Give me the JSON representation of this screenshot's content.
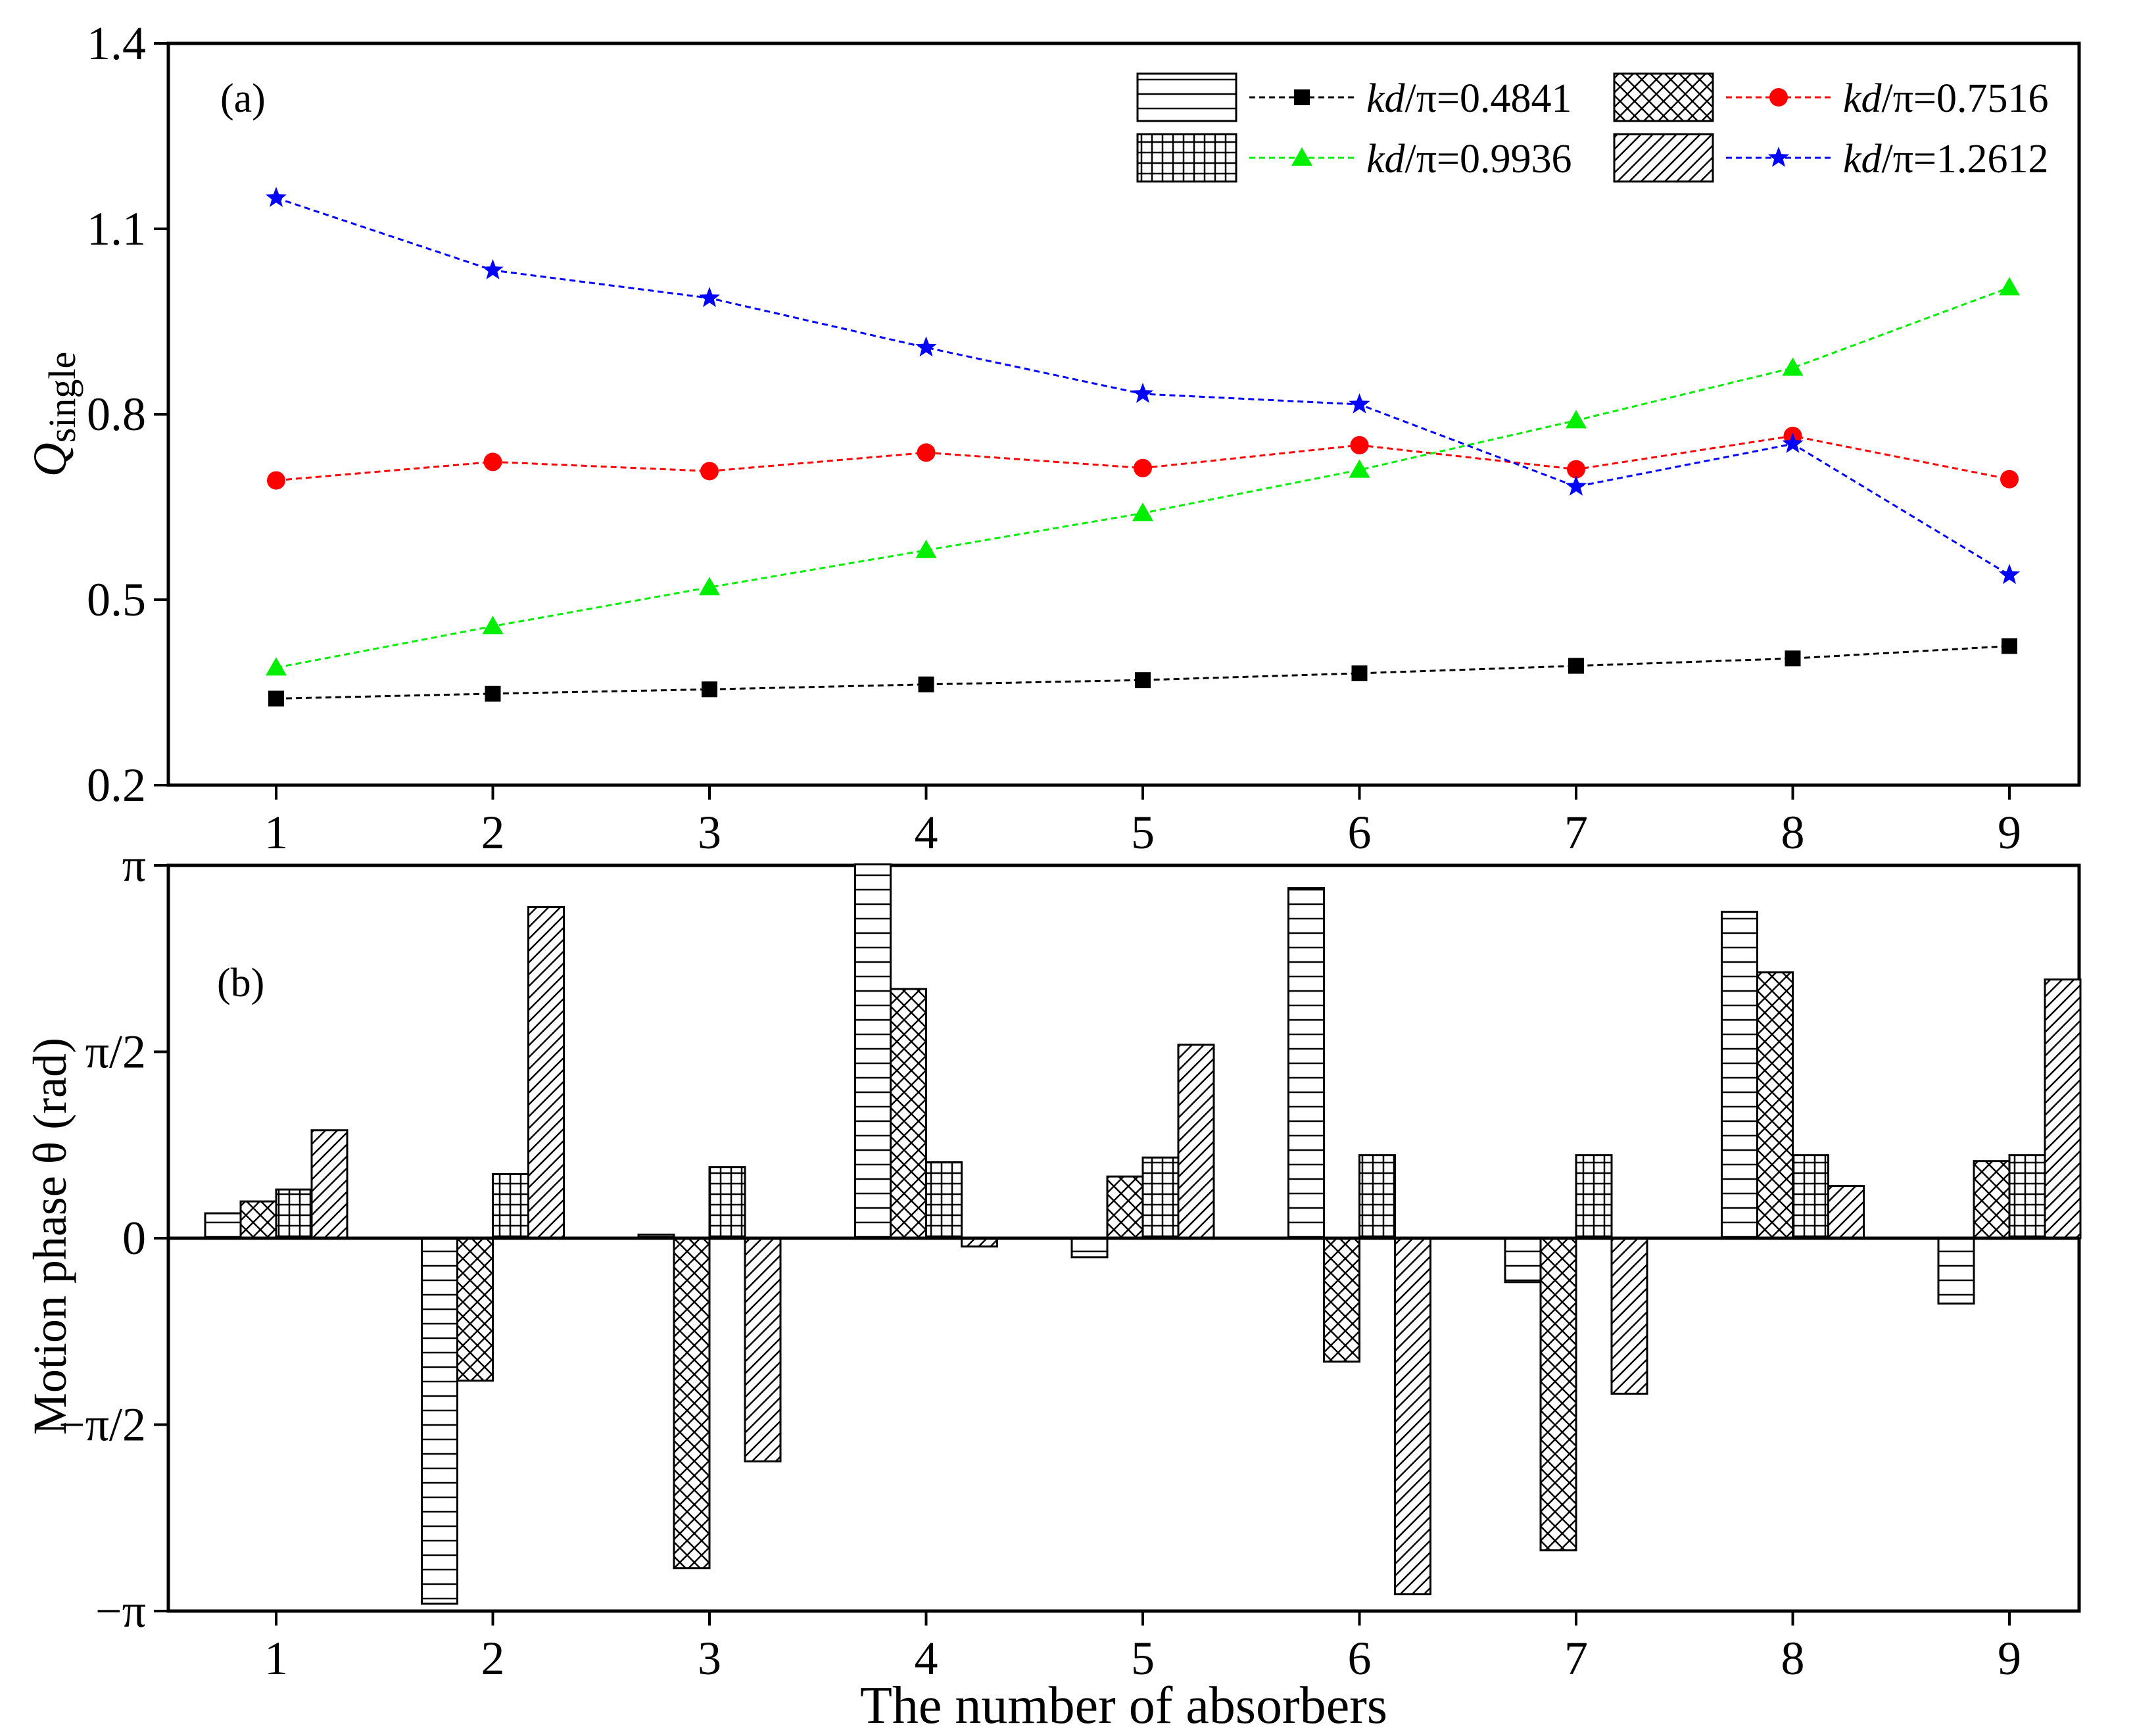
{
  "figure": {
    "x_title": "The number of absorbers"
  },
  "legend_items": [
    {
      "text_italic": "kd",
      "text_rest": "/π=0.4841",
      "pattern": "horizontal",
      "marker": "square",
      "color": "#000000"
    },
    {
      "text_italic": "kd",
      "text_rest": "/π=0.7516",
      "pattern": "crosshatch",
      "marker": "circle",
      "color": "#ff0000"
    },
    {
      "text_italic": "kd",
      "text_rest": "/π=0.9936",
      "pattern": "grid",
      "marker": "triangle",
      "color": "#00ee00"
    },
    {
      "text_italic": "kd",
      "text_rest": "/π=1.2612",
      "pattern": "diagonal",
      "marker": "star",
      "color": "#0000ff"
    }
  ],
  "chart_data": [
    {
      "panel_label": "(a)",
      "type": "line",
      "ylabel_main": "Q",
      "ylabel_sub": "single",
      "xlabel": "",
      "x": [
        1,
        2,
        3,
        4,
        5,
        6,
        7,
        8,
        9
      ],
      "xlim": [
        0.5,
        9.5
      ],
      "ylim": [
        0.2,
        1.4
      ],
      "yticks": [
        0.2,
        0.5,
        0.8,
        1.1,
        1.4
      ],
      "ytick_labels": [
        "0.2",
        "0.5",
        "0.8",
        "1.1",
        "1.4"
      ],
      "series": [
        {
          "name": "kd/π=0.4841",
          "color": "#000000",
          "marker": "square",
          "values": [
            0.34,
            0.348,
            0.355,
            0.363,
            0.37,
            0.381,
            0.393,
            0.405,
            0.425
          ]
        },
        {
          "name": "kd/π=0.7516",
          "color": "#ff0000",
          "marker": "circle",
          "values": [
            0.693,
            0.723,
            0.708,
            0.738,
            0.713,
            0.75,
            0.711,
            0.765,
            0.695
          ]
        },
        {
          "name": "kd/π=0.9936",
          "color": "#00ee00",
          "marker": "triangle",
          "values": [
            0.39,
            0.457,
            0.52,
            0.58,
            0.64,
            0.71,
            0.79,
            0.875,
            1.005
          ]
        },
        {
          "name": "kd/π=1.2612",
          "color": "#0000ff",
          "marker": "star",
          "values": [
            1.15,
            1.033,
            0.988,
            0.908,
            0.833,
            0.816,
            0.683,
            0.752,
            0.54
          ]
        }
      ]
    },
    {
      "panel_label": "(b)",
      "type": "bar",
      "ylabel": "Motion phase θ (rad)",
      "xlabel": "The number of absorbers",
      "categories": [
        "1",
        "2",
        "3",
        "4",
        "5",
        "6",
        "7",
        "8",
        "9"
      ],
      "ylim": [
        -3.14159,
        3.14159
      ],
      "ytick_values": [
        -3.14159,
        -1.5708,
        0,
        1.5708,
        3.14159
      ],
      "ytick_labels": [
        "−π",
        "−π/2",
        "0",
        "π/2",
        "π"
      ],
      "series": [
        {
          "name": "kd/π=0.4841",
          "pattern": "horizontal",
          "values": [
            0.21,
            -3.08,
            0.03,
            3.15,
            -0.16,
            2.95,
            -0.37,
            2.75,
            -0.55
          ]
        },
        {
          "name": "kd/π=0.7516",
          "pattern": "crosshatch",
          "values": [
            0.31,
            -1.2,
            -2.78,
            2.1,
            0.52,
            -1.04,
            -2.63,
            2.24,
            0.65
          ]
        },
        {
          "name": "kd/π=0.9936",
          "pattern": "grid",
          "values": [
            0.41,
            0.54,
            0.6,
            0.64,
            0.68,
            0.7,
            0.7,
            0.7,
            0.7
          ]
        },
        {
          "name": "kd/π=1.2612",
          "pattern": "diagonal",
          "values": [
            0.91,
            2.79,
            -1.88,
            -0.07,
            1.63,
            -3.0,
            -1.31,
            0.44,
            2.18
          ]
        }
      ]
    }
  ]
}
